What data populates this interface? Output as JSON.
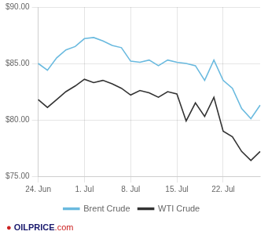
{
  "chart_data": {
    "type": "line",
    "categories": [
      "24. Jun",
      null,
      null,
      null,
      null,
      "1. Jul",
      null,
      null,
      null,
      null,
      "8. Jul",
      null,
      null,
      null,
      null,
      "15. Jul",
      null,
      null,
      null,
      null,
      "22. Jul",
      null,
      null,
      null,
      null
    ],
    "series": [
      {
        "name": "Brent Crude",
        "color": "#6ABADF",
        "values": [
          85.0,
          84.4,
          85.5,
          86.2,
          86.5,
          87.2,
          87.3,
          87.0,
          86.6,
          86.4,
          85.2,
          85.1,
          85.3,
          84.8,
          85.3,
          85.1,
          85.0,
          84.8,
          83.5,
          85.3,
          83.5,
          82.8,
          81.0,
          80.1,
          81.3
        ]
      },
      {
        "name": "WTI Crude",
        "color": "#333333",
        "values": [
          81.8,
          81.1,
          81.8,
          82.5,
          83.0,
          83.6,
          83.3,
          83.5,
          83.2,
          82.8,
          82.2,
          82.6,
          82.4,
          82.0,
          82.5,
          82.3,
          79.9,
          81.5,
          80.3,
          82.0,
          79.0,
          78.5,
          77.2,
          76.4,
          77.2
        ]
      }
    ],
    "ylim": [
      75.0,
      90.0
    ],
    "yticks": [
      {
        "value": 75.0,
        "label": "$75.00"
      },
      {
        "value": 80.0,
        "label": "$80.00"
      },
      {
        "value": 85.0,
        "label": "$85.00"
      },
      {
        "value": 90.0,
        "label": "$90.00"
      }
    ],
    "grid": true,
    "legend": "bottom",
    "annotations": [
      {
        "text": "●",
        "color": "#cc2222"
      },
      {
        "text": "OILPRICE",
        "color": "#1a1a6e"
      },
      {
        "text": ".com",
        "color": "#cc2222"
      }
    ]
  }
}
